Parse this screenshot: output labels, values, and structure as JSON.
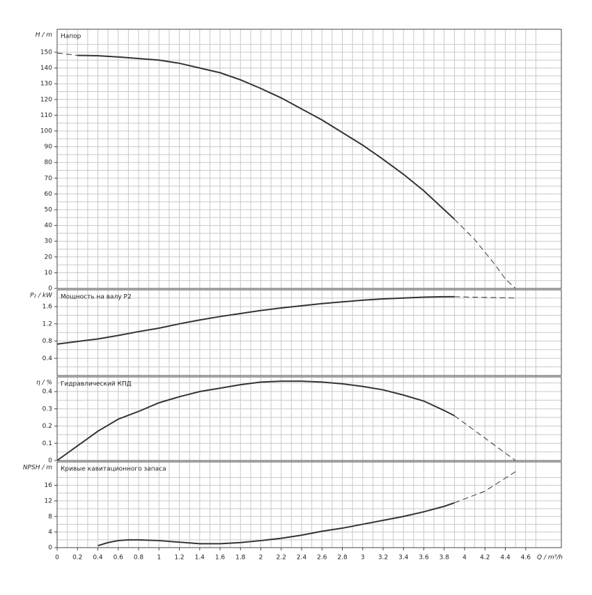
{
  "chart_data": [
    {
      "type": "line",
      "title": "Напор",
      "ylabel": "H / m",
      "color": "#333333",
      "grid": true,
      "ylim": [
        0,
        164.6
      ],
      "yticks": [
        0,
        10,
        20,
        30,
        40,
        50,
        60,
        70,
        80,
        90,
        100,
        110,
        120,
        130,
        140,
        150
      ],
      "x": [
        0.2,
        0.4,
        0.6,
        0.8,
        1.0,
        1.2,
        1.4,
        1.6,
        1.8,
        2.0,
        2.2,
        2.4,
        2.6,
        2.8,
        3.0,
        3.2,
        3.4,
        3.6,
        3.8,
        3.9
      ],
      "values": [
        148,
        147.8,
        147,
        146,
        145,
        143,
        140,
        137,
        132.5,
        127,
        121,
        114,
        107,
        99,
        91,
        82,
        72.5,
        62,
        50,
        44
      ],
      "x_dashed": [
        0,
        0.2,
        null,
        3.9,
        4.1,
        4.3,
        4.4,
        4.5
      ],
      "values_dashed": [
        149.5,
        148,
        null,
        44,
        31,
        15,
        6,
        0
      ]
    },
    {
      "type": "line",
      "title": "Мощность на валу P2",
      "ylabel": "P₂ / kW",
      "color": "#333333",
      "grid": true,
      "ylim": [
        0,
        1.99
      ],
      "yticks": [
        0.4,
        0.8,
        1.2,
        1.6
      ],
      "x": [
        0,
        0.2,
        0.4,
        0.6,
        0.8,
        1.0,
        1.2,
        1.4,
        1.6,
        1.8,
        2.0,
        2.2,
        2.4,
        2.6,
        2.8,
        3.0,
        3.2,
        3.4,
        3.6,
        3.8,
        3.9
      ],
      "values": [
        0.73,
        0.79,
        0.85,
        0.93,
        1.02,
        1.1,
        1.2,
        1.29,
        1.37,
        1.44,
        1.51,
        1.57,
        1.62,
        1.67,
        1.71,
        1.75,
        1.78,
        1.8,
        1.82,
        1.83,
        1.83
      ],
      "x_dashed": [
        3.9,
        4.5
      ],
      "values_dashed": [
        1.83,
        1.8
      ]
    },
    {
      "type": "line",
      "title": "Гидравлический КПД",
      "ylabel": "η / %",
      "color": "#333333",
      "grid": true,
      "ylim": [
        0,
        0.485
      ],
      "yticks": [
        0,
        0.1,
        0.2,
        0.3,
        0.4
      ],
      "x": [
        0,
        0.2,
        0.4,
        0.6,
        0.8,
        1.0,
        1.2,
        1.4,
        1.6,
        1.8,
        2.0,
        2.2,
        2.4,
        2.6,
        2.8,
        3.0,
        3.2,
        3.4,
        3.6,
        3.8,
        3.9
      ],
      "values": [
        0,
        0.085,
        0.17,
        0.24,
        0.285,
        0.335,
        0.37,
        0.4,
        0.42,
        0.44,
        0.455,
        0.46,
        0.46,
        0.455,
        0.445,
        0.43,
        0.41,
        0.38,
        0.345,
        0.29,
        0.26
      ],
      "x_dashed": [
        3.9,
        4.2,
        4.5
      ],
      "values_dashed": [
        0.26,
        0.13,
        0
      ]
    },
    {
      "type": "line",
      "title": "Кривые кавитационного запаса",
      "ylabel": "NPSH / m",
      "xlabel": "Q / m³/h",
      "color": "#333333",
      "grid": true,
      "ylim": [
        0,
        22
      ],
      "yticks": [
        0,
        4,
        8,
        12,
        16
      ],
      "xlim": [
        0,
        4.95
      ],
      "xticks": [
        0,
        0.2,
        0.4,
        0.6,
        0.8,
        1,
        1.2,
        1.4,
        1.6,
        1.8,
        2,
        2.2,
        2.4,
        2.6,
        2.8,
        3,
        3.2,
        3.4,
        3.6,
        3.8,
        4,
        4.2,
        4.4,
        4.6
      ],
      "x": [
        0.4,
        0.5,
        0.6,
        0.7,
        0.8,
        1.0,
        1.2,
        1.4,
        1.6,
        1.8,
        2.0,
        2.2,
        2.4,
        2.6,
        2.8,
        3.0,
        3.2,
        3.4,
        3.6,
        3.8,
        3.9
      ],
      "values": [
        0.5,
        1.3,
        1.8,
        2.0,
        2.0,
        1.8,
        1.4,
        1.0,
        1.0,
        1.3,
        1.8,
        2.4,
        3.2,
        4.2,
        5.0,
        6.0,
        7.0,
        8.0,
        9.2,
        10.6,
        11.5
      ],
      "x_dashed": [
        3.9,
        4.2,
        4.5
      ],
      "values_dashed": [
        11.5,
        14.5,
        19.5
      ]
    }
  ]
}
